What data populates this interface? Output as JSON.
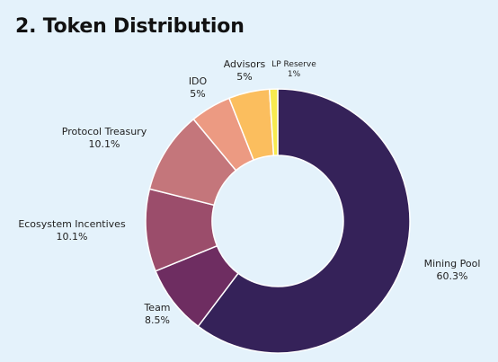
{
  "header": {
    "title": "2. Token Distribution"
  },
  "chart_data": {
    "type": "pie",
    "variant": "donut",
    "title": "2. Token Distribution",
    "start": "top",
    "direction": "clockwise",
    "legend": "none",
    "slices": [
      {
        "label": "Mining Pool",
        "value": 60.3,
        "display": "60.3%",
        "color": "#352259"
      },
      {
        "label": "Team",
        "value": 8.5,
        "display": "8.5%",
        "color": "#6e2d61"
      },
      {
        "label": "Ecosystem Incentives",
        "value": 10.1,
        "display": "10.1%",
        "color": "#9b4d6b"
      },
      {
        "label": "Protocol Treasury",
        "value": 10.1,
        "display": "10.1%",
        "color": "#c4767b"
      },
      {
        "label": "IDO",
        "value": 5,
        "display": "5%",
        "color": "#ec9a82"
      },
      {
        "label": "Advisors",
        "value": 5,
        "display": "5%",
        "color": "#fbbe5e"
      },
      {
        "label": "LP Reserve",
        "value": 1,
        "display": "1%",
        "color": "#f7ea4f"
      }
    ]
  }
}
